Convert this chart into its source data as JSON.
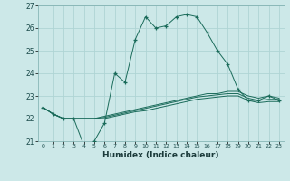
{
  "xlabel": "Humidex (Indice chaleur)",
  "background_color": "#cce8e8",
  "grid_color": "#b0d8d8",
  "line_color": "#1a6b5a",
  "x_values": [
    0,
    1,
    2,
    3,
    4,
    5,
    6,
    7,
    8,
    9,
    10,
    11,
    12,
    13,
    14,
    15,
    16,
    17,
    18,
    19,
    20,
    21,
    22,
    23
  ],
  "main_line": [
    22.5,
    22.2,
    22.0,
    22.0,
    20.8,
    21.0,
    21.8,
    24.0,
    23.6,
    25.5,
    26.5,
    26.0,
    26.1,
    26.5,
    26.6,
    26.5,
    25.8,
    25.0,
    24.4,
    23.3,
    22.8,
    22.8,
    23.0,
    22.8
  ],
  "line2": [
    22.5,
    22.2,
    22.0,
    22.0,
    22.0,
    22.0,
    22.1,
    22.2,
    22.3,
    22.4,
    22.5,
    22.6,
    22.7,
    22.8,
    22.9,
    23.0,
    23.1,
    23.1,
    23.2,
    23.2,
    23.0,
    22.9,
    23.0,
    22.9
  ],
  "line3": [
    22.5,
    22.2,
    22.0,
    22.0,
    22.0,
    22.0,
    22.05,
    22.15,
    22.25,
    22.35,
    22.45,
    22.55,
    22.65,
    22.75,
    22.85,
    22.95,
    23.0,
    23.05,
    23.1,
    23.1,
    22.9,
    22.8,
    22.85,
    22.85
  ],
  "line4": [
    22.5,
    22.2,
    22.0,
    22.0,
    22.0,
    22.0,
    22.0,
    22.1,
    22.2,
    22.3,
    22.35,
    22.45,
    22.55,
    22.65,
    22.75,
    22.85,
    22.9,
    22.95,
    23.0,
    23.0,
    22.8,
    22.7,
    22.75,
    22.75
  ],
  "ylim": [
    21.0,
    27.0
  ],
  "yticks": [
    21,
    22,
    23,
    24,
    25,
    26,
    27
  ],
  "xlim": [
    -0.5,
    23.5
  ]
}
